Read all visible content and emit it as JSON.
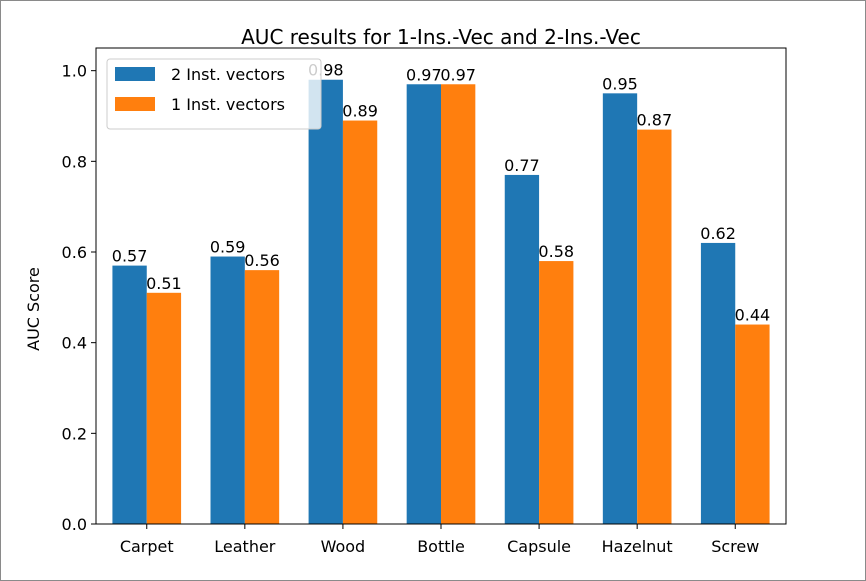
{
  "chart_data": {
    "type": "bar",
    "title": "AUC results for 1-Ins.-Vec and 2-Ins.-Vec",
    "xlabel": "",
    "ylabel": "AUC Score",
    "categories": [
      "Carpet",
      "Leather",
      "Wood",
      "Bottle",
      "Capsule",
      "Hazelnut",
      "Screw"
    ],
    "series": [
      {
        "name": "2 Inst. vectors",
        "color": "#1f77b4",
        "values": [
          0.57,
          0.59,
          0.98,
          0.97,
          0.77,
          0.95,
          0.62
        ],
        "labels": [
          "0.57",
          "0.59",
          "0.98",
          "0.97",
          "0.77",
          "0.95",
          "0.62"
        ]
      },
      {
        "name": "1 Inst. vectors",
        "color": "#ff7f0e",
        "values": [
          0.51,
          0.56,
          0.89,
          0.97,
          0.58,
          0.87,
          0.44
        ],
        "labels": [
          "0.51",
          "0.56",
          "0.89",
          "0.97",
          "0.58",
          "0.87",
          "0.44"
        ]
      }
    ],
    "ylim": [
      0,
      1.05
    ],
    "yticks": [
      0.0,
      0.2,
      0.4,
      0.6,
      0.8,
      1.0
    ],
    "ytick_labels": [
      "0.0",
      "0.2",
      "0.4",
      "0.6",
      "0.8",
      "1.0"
    ],
    "grid": false,
    "legend_position": "top-left"
  }
}
